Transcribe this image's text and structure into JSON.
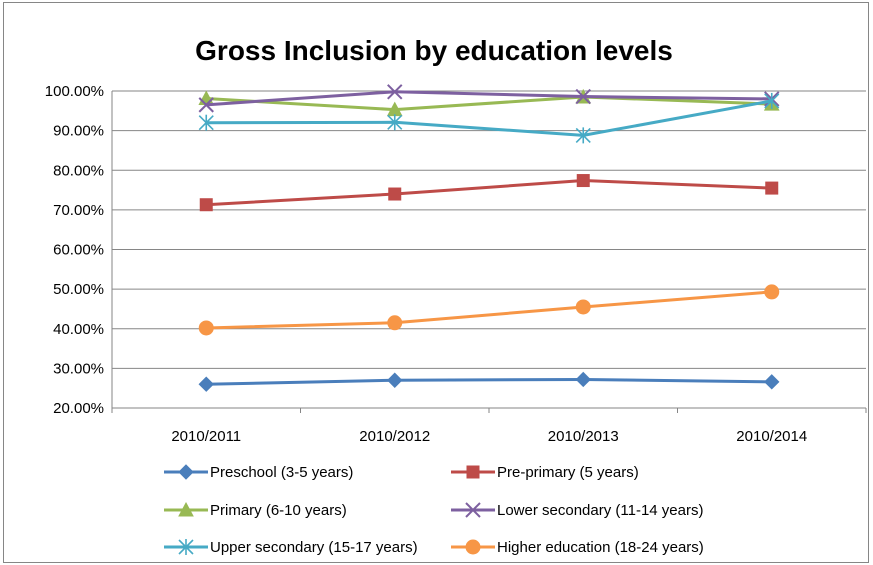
{
  "chart_data": {
    "type": "line",
    "title": "Gross Inclusion by education levels",
    "categories": [
      "2010/2011",
      "2010/2012",
      "2010/2013",
      "2010/2014"
    ],
    "y_ticks": [
      "20.00%",
      "30.00%",
      "40.00%",
      "50.00%",
      "60.00%",
      "70.00%",
      "80.00%",
      "90.00%",
      "100.00%"
    ],
    "ylim": [
      20,
      100
    ],
    "grid": true,
    "legend_position": "bottom",
    "series": [
      {
        "name": "Preschool (3-5 years)",
        "values": [
          26.0,
          27.0,
          27.2,
          26.6
        ],
        "color": "#4A7EBB",
        "marker": "diamond"
      },
      {
        "name": "Pre-primary (5 years)",
        "values": [
          71.3,
          74.0,
          77.4,
          75.5
        ],
        "color": "#BE4B48",
        "marker": "square"
      },
      {
        "name": "Primary (6-10 years)",
        "values": [
          98.1,
          95.3,
          98.5,
          96.7
        ],
        "color": "#98B954",
        "marker": "triangle"
      },
      {
        "name": "Lower secondary (11-14 years)",
        "values": [
          96.5,
          99.8,
          98.6,
          98.0
        ],
        "color": "#7D60A0",
        "marker": "x"
      },
      {
        "name": "Upper secondary (15-17 years)",
        "values": [
          92.0,
          92.1,
          88.8,
          97.5
        ],
        "color": "#46AAC5",
        "marker": "star"
      },
      {
        "name": "Higher education (18-24 years)",
        "values": [
          40.2,
          41.5,
          45.5,
          49.3
        ],
        "color": "#F79646",
        "marker": "circle"
      }
    ]
  }
}
